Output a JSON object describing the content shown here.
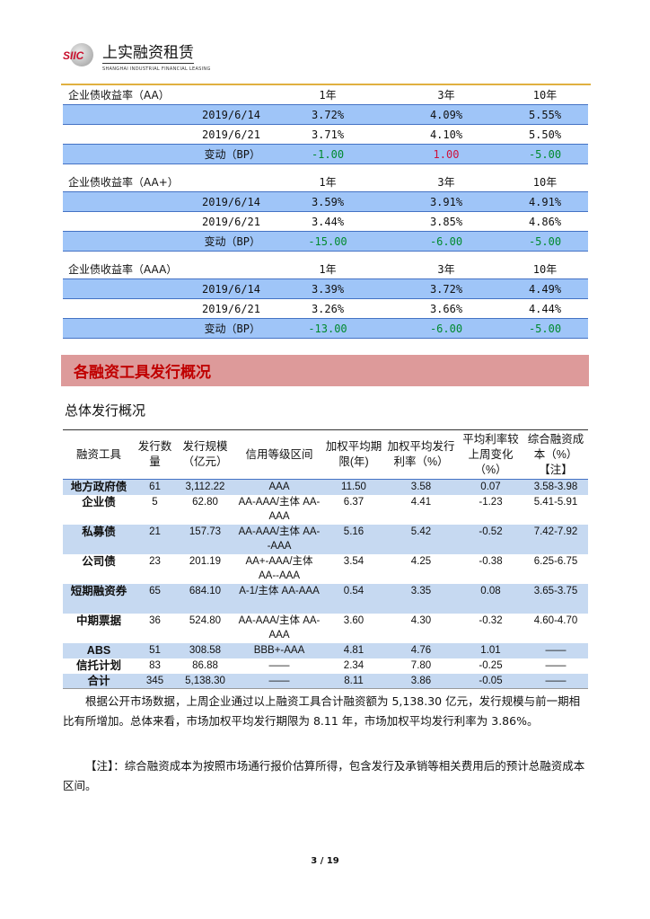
{
  "header": {
    "logo_mark": "SIIC",
    "logo_cn": "上实融资租赁",
    "logo_en": "SHANGHAI INDUSTRIAL FINANCIAL LEASING"
  },
  "yield_tables": [
    {
      "title": "企业债收益率（AA）",
      "cols": [
        "1年",
        "3年",
        "10年"
      ],
      "rows": [
        {
          "date": "2019/6/14",
          "v": [
            "3.72%",
            "4.09%",
            "5.55%"
          ]
        },
        {
          "date": "2019/6/21",
          "v": [
            "3.71%",
            "4.10%",
            "5.50%"
          ]
        }
      ],
      "change_label": "变动（BP）",
      "change": [
        "-1.00",
        "1.00",
        "-5.00"
      ]
    },
    {
      "title": "企业债收益率（AA+）",
      "cols": [
        "1年",
        "3年",
        "10年"
      ],
      "rows": [
        {
          "date": "2019/6/14",
          "v": [
            "3.59%",
            "3.91%",
            "4.91%"
          ]
        },
        {
          "date": "2019/6/21",
          "v": [
            "3.44%",
            "3.85%",
            "4.86%"
          ]
        }
      ],
      "change_label": "变动（BP）",
      "change": [
        "-15.00",
        "-6.00",
        "-5.00"
      ]
    },
    {
      "title": "企业债收益率（AAA）",
      "cols": [
        "1年",
        "3年",
        "10年"
      ],
      "rows": [
        {
          "date": "2019/6/14",
          "v": [
            "3.39%",
            "3.72%",
            "4.49%"
          ]
        },
        {
          "date": "2019/6/21",
          "v": [
            "3.26%",
            "3.66%",
            "4.44%"
          ]
        }
      ],
      "change_label": "变动（BP）",
      "change": [
        "-13.00",
        "-6.00",
        "-5.00"
      ]
    }
  ],
  "colors": {
    "positive": "#d0103a",
    "negative": "#008a2e",
    "row_blue": "#9fc5f8",
    "banner": "#dd9a9a"
  },
  "section_title": "各融资工具发行概况",
  "subtitle": "总体发行概况",
  "issuance": {
    "headers": [
      "融资工具",
      "发行数量",
      "发行规模（亿元）",
      "信用等级区间",
      "加权平均期限(年)",
      "加权平均发行利率（%）",
      "平均利率较上周变化（%）",
      "综合融资成本（%）【注】"
    ],
    "rows": [
      [
        "地方政府债",
        "61",
        "3,112.22",
        "AAA",
        "11.50",
        "3.58",
        "0.07",
        "3.58-3.98"
      ],
      [
        "企业债",
        "5",
        "62.80",
        "AA-AAA/主体 AA-AAA",
        "6.37",
        "4.41",
        "-1.23",
        "5.41-5.91"
      ],
      [
        "私募债",
        "21",
        "157.73",
        "AA-AAA/主体 AA--AAA",
        "5.16",
        "5.42",
        "-0.52",
        "7.42-7.92"
      ],
      [
        "公司债",
        "23",
        "201.19",
        "AA+-AAA/主体 AA--AAA",
        "3.54",
        "4.25",
        "-0.38",
        "6.25-6.75"
      ],
      [
        "短期融资券",
        "65",
        "684.10",
        "A-1/主体 AA-AAA",
        "0.54",
        "3.35",
        "0.08",
        "3.65-3.75"
      ],
      [
        "中期票据",
        "36",
        "524.80",
        "AA-AAA/主体 AA-AAA",
        "3.60",
        "4.30",
        "-0.32",
        "4.60-4.70"
      ],
      [
        "ABS",
        "51",
        "308.58",
        "BBB+-AAA",
        "4.81",
        "4.76",
        "1.01",
        "——"
      ],
      [
        "信托计划",
        "83",
        "86.88",
        "——",
        "2.34",
        "7.80",
        "-0.25",
        "——"
      ],
      [
        "合计",
        "345",
        "5,138.30",
        "——",
        "8.11",
        "3.86",
        "-0.05",
        "——"
      ]
    ]
  },
  "paragraphs": [
    "根据公开市场数据，上周企业通过以上融资工具合计融资额为 5,138.30 亿元，发行规模与前一期相比有所增加。总体来看，市场加权平均发行期限为 8.11 年，市场加权平均发行利率为 3.86%。",
    "【注】：综合融资成本为按照市场通行报价估算所得，包含发行及承销等相关费用后的预计总融资成本区间。"
  ],
  "page_number": "3 / 19"
}
